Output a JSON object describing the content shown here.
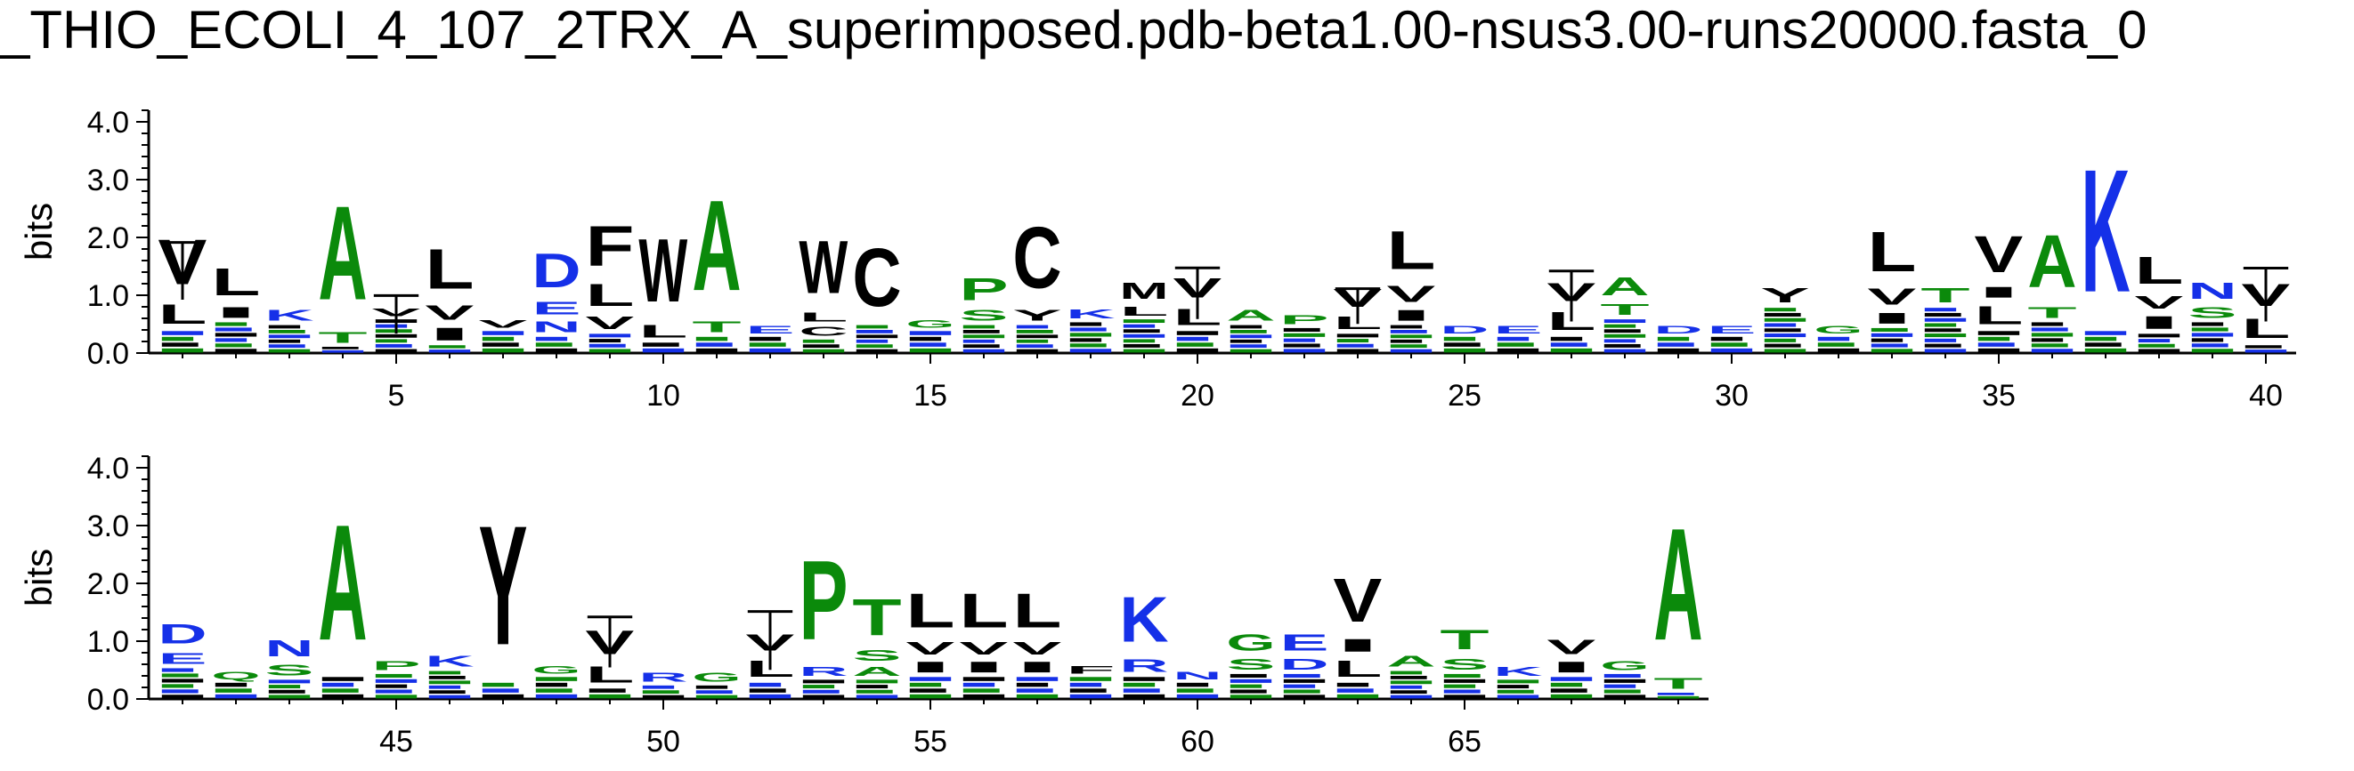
{
  "title": "_THIO_ECOLI_4_107_2TRX_A_superimposed.pdb-beta1.00-nsus3.00-runs20000.fasta_0",
  "colors": {
    "hydrophobic": "#000000",
    "polar": "#0b8a0b",
    "charged": "#1530e8",
    "axis": "#000000",
    "background": "#ffffff"
  },
  "chart_data": [
    {
      "type": "bar",
      "subtype": "sequence-logo",
      "ylabel": "bits",
      "ylim": [
        0,
        4.2
      ],
      "yticks": [
        "0.0",
        "1.0",
        "2.0",
        "3.0",
        "4.0"
      ],
      "x_range": [
        1,
        40
      ],
      "xticks": [
        5,
        10,
        15,
        20,
        25,
        30,
        35,
        40
      ],
      "grid": false,
      "columns": [
        {
          "pos": 1,
          "total": 2.2,
          "errorbar": 1.1,
          "letters": [
            [
              "L",
              0.55
            ],
            [
              "V",
              1.25
            ]
          ]
        },
        {
          "pos": 2,
          "total": 1.6,
          "letters": [
            [
              "I",
              0.3
            ],
            [
              "L",
              0.75
            ]
          ]
        },
        {
          "pos": 3,
          "total": 0.8,
          "letters": [
            [
              "K",
              0.3
            ]
          ]
        },
        {
          "pos": 4,
          "total": 3.0,
          "letters": [
            [
              "T",
              0.3
            ],
            [
              "A",
              2.6
            ]
          ]
        },
        {
          "pos": 5,
          "total": 0.8,
          "errorbar": 0.8,
          "letters": [
            [
              "V",
              0.2
            ]
          ]
        },
        {
          "pos": 6,
          "total": 2.0,
          "letters": [
            [
              "I",
              0.35
            ],
            [
              "V",
              0.4
            ],
            [
              "L",
              1.1
            ]
          ]
        },
        {
          "pos": 7,
          "total": 0.6,
          "letters": [
            [
              "V",
              0.2
            ]
          ]
        },
        {
          "pos": 8,
          "total": 1.9,
          "letters": [
            [
              "N",
              0.3
            ],
            [
              "E",
              0.35
            ],
            [
              "D",
              0.95
            ]
          ]
        },
        {
          "pos": 9,
          "total": 2.4,
          "letters": [
            [
              "V",
              0.35
            ],
            [
              "L",
              0.6
            ],
            [
              "F",
              1.1
            ]
          ]
        },
        {
          "pos": 10,
          "total": 2.3,
          "letters": [
            [
              "L",
              0.35
            ],
            [
              "W",
              1.75
            ]
          ]
        },
        {
          "pos": 11,
          "total": 3.1,
          "letters": [
            [
              "T",
              0.3
            ],
            [
              "A",
              2.5
            ]
          ]
        },
        {
          "pos": 12,
          "total": 0.5,
          "letters": [
            [
              "E",
              0.2
            ]
          ]
        },
        {
          "pos": 13,
          "total": 2.2,
          "letters": [
            [
              "C",
              0.25
            ],
            [
              "L",
              0.25
            ],
            [
              "W",
              1.45
            ]
          ]
        },
        {
          "pos": 14,
          "total": 2.1,
          "letters": [
            [
              "C",
              1.6
            ]
          ]
        },
        {
          "pos": 15,
          "total": 0.6,
          "letters": [
            [
              "G",
              0.2
            ]
          ]
        },
        {
          "pos": 16,
          "total": 1.4,
          "letters": [
            [
              "S",
              0.3
            ],
            [
              "P",
              0.6
            ]
          ]
        },
        {
          "pos": 17,
          "total": 2.5,
          "letters": [
            [
              "Y",
              0.3
            ],
            [
              "C",
              1.7
            ]
          ]
        },
        {
          "pos": 18,
          "total": 0.8,
          "letters": [
            [
              "K",
              0.25
            ]
          ]
        },
        {
          "pos": 19,
          "total": 1.3,
          "letters": [
            [
              "L",
              0.25
            ],
            [
              "M",
              0.45
            ]
          ]
        },
        {
          "pos": 20,
          "total": 1.4,
          "errorbar": 1.1,
          "letters": [
            [
              "L",
              0.45
            ],
            [
              "V",
              0.55
            ]
          ]
        },
        {
          "pos": 21,
          "total": 0.8,
          "letters": [
            [
              "A",
              0.3
            ]
          ]
        },
        {
          "pos": 22,
          "total": 0.7,
          "letters": [
            [
              "P",
              0.25
            ]
          ]
        },
        {
          "pos": 23,
          "total": 1.2,
          "errorbar": 0.6,
          "letters": [
            [
              "L",
              0.35
            ],
            [
              "V",
              0.5
            ]
          ]
        },
        {
          "pos": 24,
          "total": 2.3,
          "letters": [
            [
              "I",
              0.3
            ],
            [
              "V",
              0.45
            ],
            [
              "L",
              1.05
            ]
          ]
        },
        {
          "pos": 25,
          "total": 0.5,
          "letters": [
            [
              "D",
              0.2
            ]
          ]
        },
        {
          "pos": 26,
          "total": 0.5,
          "letters": [
            [
              "E",
              0.2
            ]
          ]
        },
        {
          "pos": 27,
          "total": 1.3,
          "errorbar": 1.1,
          "letters": [
            [
              "L",
              0.5
            ],
            [
              "V",
              0.5
            ]
          ]
        },
        {
          "pos": 28,
          "total": 1.4,
          "letters": [
            [
              "T",
              0.3
            ],
            [
              "A",
              0.5
            ]
          ]
        },
        {
          "pos": 29,
          "total": 0.5,
          "letters": [
            [
              "D",
              0.2
            ]
          ]
        },
        {
          "pos": 30,
          "total": 0.5,
          "letters": [
            [
              "E",
              0.2
            ]
          ]
        },
        {
          "pos": 31,
          "total": 1.2,
          "letters": [
            [
              "Y",
              0.4
            ]
          ]
        },
        {
          "pos": 32,
          "total": 0.5,
          "letters": [
            [
              "G",
              0.2
            ]
          ]
        },
        {
          "pos": 33,
          "total": 2.3,
          "letters": [
            [
              "I",
              0.3
            ],
            [
              "V",
              0.45
            ],
            [
              "L",
              1.1
            ]
          ]
        },
        {
          "pos": 34,
          "total": 1.2,
          "letters": [
            [
              "T",
              0.4
            ]
          ]
        },
        {
          "pos": 35,
          "total": 2.2,
          "letters": [
            [
              "L",
              0.5
            ],
            [
              "I",
              0.3
            ],
            [
              "V",
              1.0
            ]
          ]
        },
        {
          "pos": 36,
          "total": 2.3,
          "letters": [
            [
              "T",
              0.3
            ],
            [
              "A",
              1.45
            ]
          ]
        },
        {
          "pos": 37,
          "total": 3.8,
          "letters": [
            [
              "K",
              3.4
            ]
          ]
        },
        {
          "pos": 38,
          "total": 1.8,
          "letters": [
            [
              "I",
              0.35
            ],
            [
              "V",
              0.35
            ],
            [
              "L",
              0.75
            ]
          ]
        },
        {
          "pos": 39,
          "total": 1.3,
          "letters": [
            [
              "S",
              0.3
            ],
            [
              "N",
              0.45
            ]
          ]
        },
        {
          "pos": 40,
          "total": 1.3,
          "errorbar": 1.2,
          "letters": [
            [
              "L",
              0.55
            ],
            [
              "V",
              0.6
            ]
          ]
        }
      ]
    },
    {
      "type": "bar",
      "subtype": "sequence-logo",
      "ylabel": "bits",
      "ylim": [
        0,
        4.2
      ],
      "yticks": [
        "0.0",
        "1.0",
        "2.0",
        "3.0",
        "4.0"
      ],
      "x_range": [
        41,
        69
      ],
      "xticks": [
        45,
        50,
        55,
        60,
        65
      ],
      "grid": false,
      "columns": [
        {
          "pos": 41,
          "total": 1.4,
          "letters": [
            [
              "E",
              0.3
            ],
            [
              "D",
              0.55
            ]
          ]
        },
        {
          "pos": 42,
          "total": 0.5,
          "letters": [
            [
              "Q",
              0.2
            ]
          ]
        },
        {
          "pos": 43,
          "total": 1.1,
          "letters": [
            [
              "S",
              0.3
            ],
            [
              "N",
              0.45
            ]
          ]
        },
        {
          "pos": 44,
          "total": 3.6,
          "letters": [
            [
              "A",
              3.2
            ]
          ]
        },
        {
          "pos": 45,
          "total": 0.7,
          "letters": [
            [
              "P",
              0.25
            ]
          ]
        },
        {
          "pos": 46,
          "total": 0.8,
          "letters": [
            [
              "K",
              0.3
            ]
          ]
        },
        {
          "pos": 47,
          "total": 3.6,
          "letters": [
            [
              "Y",
              3.3
            ]
          ]
        },
        {
          "pos": 48,
          "total": 0.6,
          "letters": [
            [
              "G",
              0.2
            ]
          ]
        },
        {
          "pos": 49,
          "total": 1.3,
          "errorbar": 1.1,
          "letters": [
            [
              "L",
              0.45
            ],
            [
              "V",
              0.65
            ]
          ]
        },
        {
          "pos": 50,
          "total": 0.5,
          "letters": [
            [
              "R",
              0.25
            ]
          ]
        },
        {
          "pos": 51,
          "total": 0.5,
          "letters": [
            [
              "G",
              0.25
            ]
          ]
        },
        {
          "pos": 52,
          "total": 1.2,
          "errorbar": 1.4,
          "letters": [
            [
              "L",
              0.45
            ],
            [
              "V",
              0.45
            ]
          ]
        },
        {
          "pos": 53,
          "total": 2.8,
          "letters": [
            [
              "R",
              0.25
            ],
            [
              "P",
              2.2
            ]
          ]
        },
        {
          "pos": 54,
          "total": 1.9,
          "letters": [
            [
              "A",
              0.25
            ],
            [
              "S",
              0.3
            ],
            [
              "T",
              1.0
            ]
          ]
        },
        {
          "pos": 55,
          "total": 2.0,
          "letters": [
            [
              "I",
              0.3
            ],
            [
              "V",
              0.35
            ],
            [
              "L",
              0.95
            ]
          ]
        },
        {
          "pos": 56,
          "total": 2.0,
          "letters": [
            [
              "I",
              0.3
            ],
            [
              "V",
              0.35
            ],
            [
              "L",
              0.95
            ]
          ]
        },
        {
          "pos": 57,
          "total": 2.0,
          "letters": [
            [
              "I",
              0.3
            ],
            [
              "V",
              0.35
            ],
            [
              "L",
              0.95
            ]
          ]
        },
        {
          "pos": 58,
          "total": 0.6,
          "letters": [
            [
              "F",
              0.2
            ]
          ]
        },
        {
          "pos": 59,
          "total": 2.0,
          "letters": [
            [
              "R",
              0.35
            ],
            [
              "K",
              1.25
            ]
          ]
        },
        {
          "pos": 60,
          "total": 0.5,
          "letters": [
            [
              "N",
              0.2
            ]
          ]
        },
        {
          "pos": 61,
          "total": 1.2,
          "letters": [
            [
              "S",
              0.3
            ],
            [
              "G",
              0.45
            ]
          ]
        },
        {
          "pos": 62,
          "total": 1.2,
          "letters": [
            [
              "D",
              0.3
            ],
            [
              "E",
              0.45
            ]
          ]
        },
        {
          "pos": 63,
          "total": 2.3,
          "letters": [
            [
              "L",
              0.45
            ],
            [
              "I",
              0.35
            ],
            [
              "V",
              1.2
            ]
          ]
        },
        {
          "pos": 64,
          "total": 0.8,
          "letters": [
            [
              "A",
              0.3
            ]
          ]
        },
        {
          "pos": 65,
          "total": 1.3,
          "letters": [
            [
              "S",
              0.3
            ],
            [
              "T",
              0.55
            ]
          ]
        },
        {
          "pos": 66,
          "total": 0.6,
          "letters": [
            [
              "K",
              0.25
            ]
          ]
        },
        {
          "pos": 67,
          "total": 1.1,
          "letters": [
            [
              "I",
              0.3
            ],
            [
              "V",
              0.4
            ]
          ]
        },
        {
          "pos": 68,
          "total": 0.7,
          "letters": [
            [
              "G",
              0.25
            ]
          ]
        },
        {
          "pos": 69,
          "total": 3.5,
          "letters": [
            [
              "T",
              0.3
            ],
            [
              "A",
              3.1
            ]
          ]
        }
      ]
    }
  ]
}
